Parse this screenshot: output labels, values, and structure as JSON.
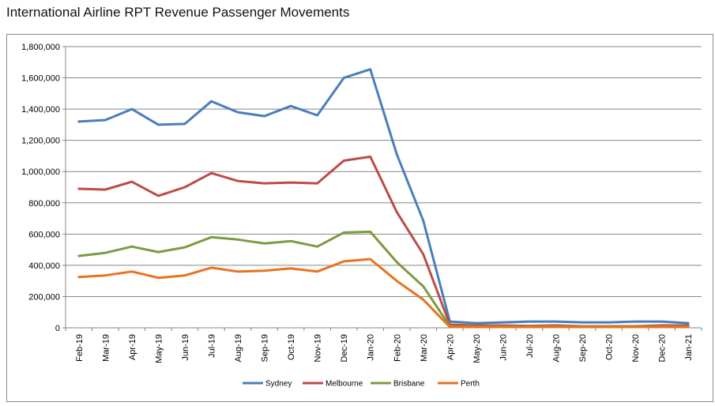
{
  "chart_data": {
    "type": "line",
    "title": "International Airline RPT Revenue Passenger Movements",
    "xlabel": "",
    "ylabel": "",
    "ylim": [
      0,
      1800000
    ],
    "yticks": [
      0,
      200000,
      400000,
      600000,
      800000,
      1000000,
      1200000,
      1400000,
      1600000,
      1800000
    ],
    "ytick_labels": [
      "0",
      "200,000",
      "400,000",
      "600,000",
      "800,000",
      "1,000,000",
      "1,200,000",
      "1,400,000",
      "1,600,000",
      "1,800,000"
    ],
    "grid": true,
    "legend": "bottom",
    "categories": [
      "Feb-19",
      "Mar-19",
      "Apr-19",
      "May-19",
      "Jun-19",
      "Jul-19",
      "Aug-19",
      "Sep-19",
      "Oct-19",
      "Nov-19",
      "Dec-19",
      "Jan-20",
      "Feb-20",
      "Mar-20",
      "Apr-20",
      "May-20",
      "Jun-20",
      "Jul-20",
      "Aug-20",
      "Sep-20",
      "Oct-20",
      "Nov-20",
      "Dec-20",
      "Jan-21"
    ],
    "series": [
      {
        "name": "Sydney",
        "color": "#4a7ebb",
        "values": [
          1320000,
          1330000,
          1400000,
          1300000,
          1305000,
          1450000,
          1380000,
          1355000,
          1420000,
          1360000,
          1600000,
          1655000,
          1110000,
          685000,
          40000,
          30000,
          35000,
          40000,
          40000,
          35000,
          35000,
          40000,
          40000,
          30000
        ]
      },
      {
        "name": "Melbourne",
        "color": "#be4b48",
        "values": [
          890000,
          885000,
          935000,
          845000,
          900000,
          990000,
          940000,
          925000,
          930000,
          925000,
          1070000,
          1095000,
          740000,
          470000,
          20000,
          15000,
          15000,
          12000,
          15000,
          10000,
          10000,
          10000,
          15000,
          15000
        ]
      },
      {
        "name": "Brisbane",
        "color": "#7d9b3e",
        "values": [
          460000,
          480000,
          520000,
          485000,
          515000,
          580000,
          565000,
          540000,
          555000,
          520000,
          610000,
          615000,
          420000,
          265000,
          10000,
          8000,
          8000,
          8000,
          8000,
          8000,
          8000,
          8000,
          8000,
          8000
        ]
      },
      {
        "name": "Perth",
        "color": "#e8731e",
        "values": [
          325000,
          335000,
          360000,
          320000,
          335000,
          385000,
          360000,
          365000,
          380000,
          360000,
          425000,
          440000,
          300000,
          180000,
          5000,
          5000,
          5000,
          5000,
          5000,
          5000,
          5000,
          5000,
          5000,
          5000
        ]
      }
    ]
  }
}
